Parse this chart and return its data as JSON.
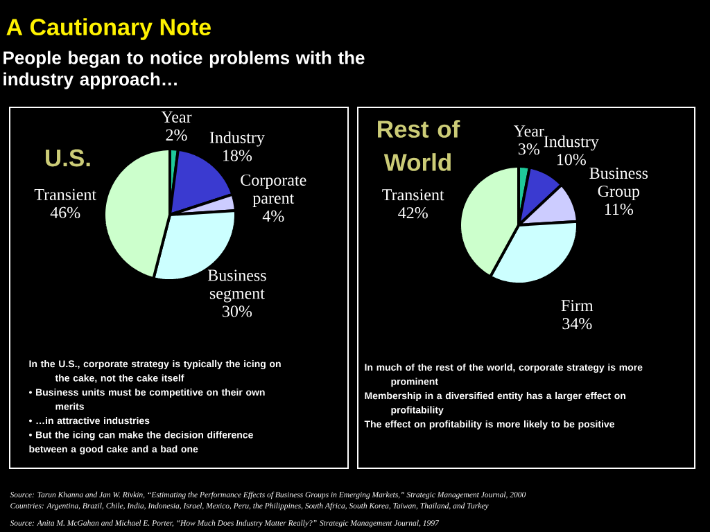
{
  "chart_data": [
    {
      "type": "other",
      "title": "A Cautionary Note",
      "subtitle": "People began to notice problems with the industry approach…",
      "annotations": [
        "Source:  Tarun Khanna and Jan W. Rivkin, “Estimating the Performance Effects of Business Groups in Emerging Markets,” Strategic Management Journal, 2000",
        "Countries:  Argentina, Brazil, Chile, India, Indonesia, Israel, Mexico, Peru, the Philippines, South Africa, South Korea, Taiwan, Thailand, and Turkey",
        "Source:  Anita M. McGahan and Michael E. Porter, “How Much Does Industry Matter Really?” Strategic Management Journal, 1997"
      ]
    },
    {
      "type": "pie",
      "title": "U.S.",
      "categories": [
        "Year",
        "Industry",
        "Corporate parent",
        "Business segment",
        "Transient"
      ],
      "values": [
        2,
        18,
        4,
        30,
        46
      ],
      "colors": [
        "#1fc99a",
        "#3a3ad0",
        "#ccccff",
        "#ccffff",
        "#ccffcc"
      ],
      "value_labels": [
        "2%",
        "18%",
        "4%",
        "30%",
        "46%"
      ],
      "annotations": [
        "In the U.S., corporate strategy is typically the icing on the cake, not the cake itself",
        "• Business units must be competitive on their own merits",
        "• …in attractive industries",
        "• But the icing can make the decision difference between a good cake and a bad one"
      ]
    },
    {
      "type": "pie",
      "title": "Rest of World",
      "categories": [
        "Year",
        "Industry",
        "Business Group",
        "Firm",
        "Transient"
      ],
      "values": [
        3,
        10,
        11,
        34,
        42
      ],
      "colors": [
        "#1fc99a",
        "#3a3ad0",
        "#ccccff",
        "#ccffff",
        "#ccffcc"
      ],
      "value_labels": [
        "3%",
        "10%",
        "11%",
        "34%",
        "42%"
      ],
      "annotations": [
        "In much of the rest of the world, corporate strategy is more prominent",
        "Membership in a diversified entity has a larger effect on profitability",
        "The effect on profitability is more likely to be positive"
      ]
    }
  ]
}
